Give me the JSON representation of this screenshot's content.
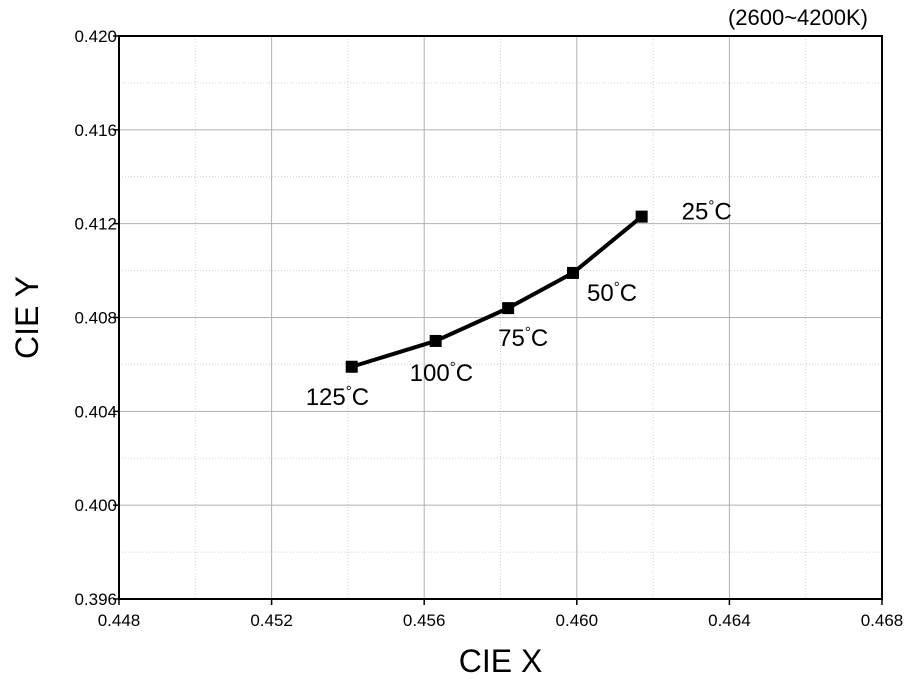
{
  "chart_data": {
    "type": "line",
    "title": "",
    "xlabel": "CIE X",
    "ylabel": "CIE Y",
    "annotation": "(2600~4200K)",
    "xlim": [
      0.448,
      0.468
    ],
    "ylim": [
      0.396,
      0.42
    ],
    "x_ticks": [
      "0.448",
      "0.452",
      "0.456",
      "0.460",
      "0.464",
      "0.468"
    ],
    "y_ticks": [
      "0.396",
      "0.400",
      "0.404",
      "0.408",
      "0.412",
      "0.416",
      "0.420"
    ],
    "grid": true,
    "series": [
      {
        "points": [
          {
            "x": 0.4617,
            "y": 0.4123,
            "label": "25°C"
          },
          {
            "x": 0.4599,
            "y": 0.4099,
            "label": "50°C"
          },
          {
            "x": 0.4582,
            "y": 0.4084,
            "label": "75°C"
          },
          {
            "x": 0.4563,
            "y": 0.407,
            "label": "100°C"
          },
          {
            "x": 0.4541,
            "y": 0.4059,
            "label": "125°C"
          }
        ]
      }
    ],
    "colors": {
      "line": "#000000",
      "marker": "#000000",
      "grid": "#b0b0b0",
      "minor_grid": "#d0d0d0"
    }
  }
}
